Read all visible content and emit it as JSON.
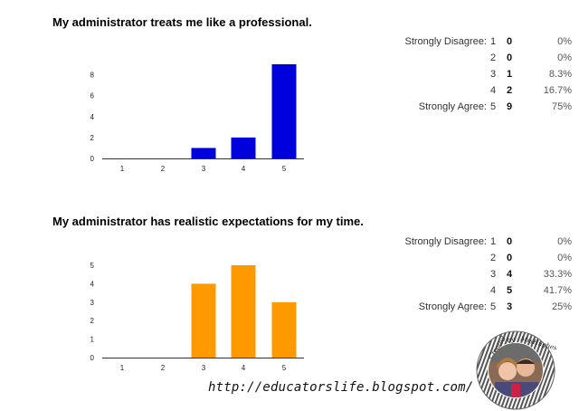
{
  "watermark": {
    "url_text": "http://educatorslife.blogspot.com/",
    "badge_text": "Created by MrsHughes"
  },
  "chart_data": [
    {
      "type": "bar",
      "title": "My administrator treats me like a professional.",
      "categories": [
        "1",
        "2",
        "3",
        "4",
        "5"
      ],
      "values": [
        0,
        0,
        1,
        2,
        9
      ],
      "ylim": [
        0,
        9
      ],
      "yticks": [
        "0",
        "2",
        "4",
        "6",
        "8"
      ],
      "ytick_values": [
        0,
        2,
        4,
        6,
        8
      ],
      "bar_color": "#0000dd",
      "xlabel": "",
      "ylabel": "",
      "summary": [
        {
          "label": "Strongly Disagree:",
          "response": "1",
          "count": "0",
          "percent": "0%"
        },
        {
          "label": "",
          "response": "2",
          "count": "0",
          "percent": "0%"
        },
        {
          "label": "",
          "response": "3",
          "count": "1",
          "percent": "8.3%"
        },
        {
          "label": "",
          "response": "4",
          "count": "2",
          "percent": "16.7%"
        },
        {
          "label": "Strongly Agree:",
          "response": "5",
          "count": "9",
          "percent": "75%"
        }
      ]
    },
    {
      "type": "bar",
      "title": "My administrator has realistic expectations for my time.",
      "categories": [
        "1",
        "2",
        "3",
        "4",
        "5"
      ],
      "values": [
        0,
        0,
        4,
        5,
        3
      ],
      "ylim": [
        0,
        5
      ],
      "yticks": [
        "0",
        "1",
        "2",
        "3",
        "4",
        "5"
      ],
      "ytick_values": [
        0,
        1,
        2,
        3,
        4,
        5
      ],
      "bar_color": "#ff9900",
      "xlabel": "",
      "ylabel": "",
      "summary": [
        {
          "label": "Strongly Disagree:",
          "response": "1",
          "count": "0",
          "percent": "0%"
        },
        {
          "label": "",
          "response": "2",
          "count": "0",
          "percent": "0%"
        },
        {
          "label": "",
          "response": "3",
          "count": "4",
          "percent": "33.3%"
        },
        {
          "label": "",
          "response": "4",
          "count": "5",
          "percent": "41.7%"
        },
        {
          "label": "Strongly Agree:",
          "response": "5",
          "count": "3",
          "percent": "25%"
        }
      ]
    }
  ]
}
